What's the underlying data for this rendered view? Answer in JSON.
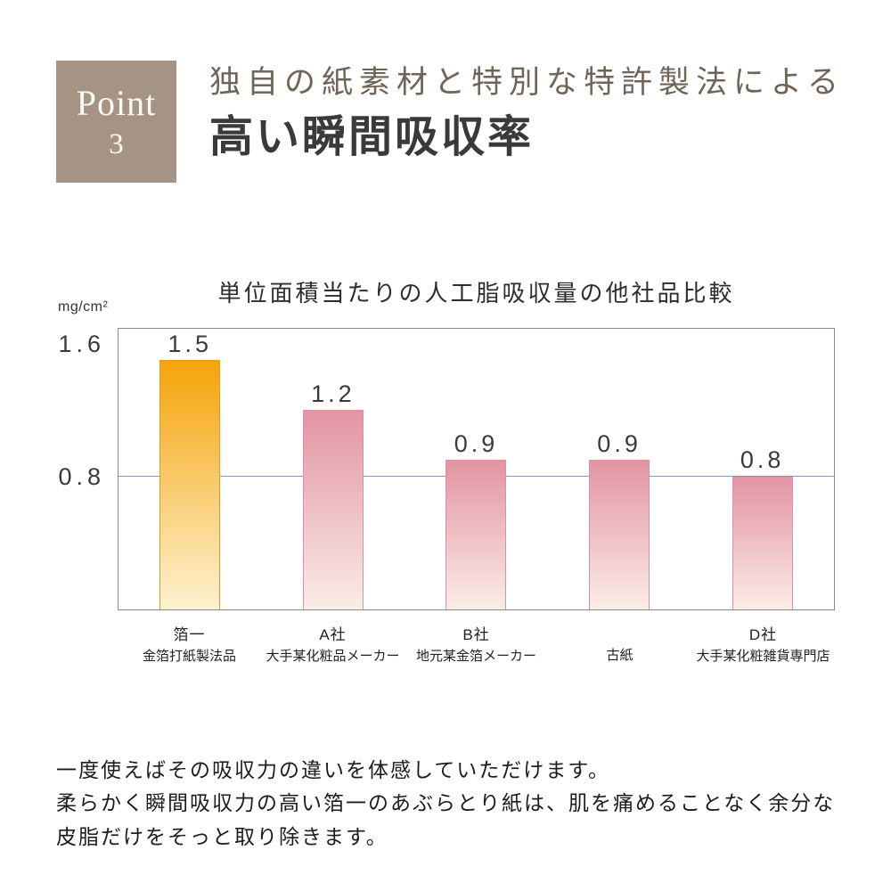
{
  "point_badge": {
    "label": "Point",
    "number": "3"
  },
  "header": {
    "subtitle": "独自の紙素材と特別な特許製法による",
    "title": "高い瞬間吸収率"
  },
  "chart_data": {
    "type": "bar",
    "title": "単位面積当たりの人工脂吸収量の他社品比較",
    "ylabel": "mg/cm²",
    "xlabel": "",
    "ylim": [
      0,
      1.7
    ],
    "yticks": [
      {
        "label": "1.6",
        "value": 1.6
      },
      {
        "label": "0.8",
        "value": 0.8
      }
    ],
    "reference_line": 0.8,
    "grid": false,
    "legend": false,
    "categories": [
      {
        "line1": "箔一",
        "line2": "金箔打紙製法品"
      },
      {
        "line1": "A社",
        "line2": "大手某化粧品メーカー"
      },
      {
        "line1": "B社",
        "line2": "地元某金箔メーカー"
      },
      {
        "line1": "",
        "line2": "古紙"
      },
      {
        "line1": "D社",
        "line2": "大手某化粧雑貨専門店"
      }
    ],
    "values": [
      1.5,
      1.2,
      0.9,
      0.9,
      0.8
    ],
    "value_labels": [
      "1.5",
      "1.2",
      "0.9",
      "0.9",
      "0.8"
    ],
    "bar_styles": [
      {
        "top": "#f6a30a",
        "bottom": "#fdf2d0",
        "border": "#e9991a"
      },
      {
        "top": "#e294a3",
        "bottom": "#fbece6",
        "border": "#da92a0"
      },
      {
        "top": "#e294a3",
        "bottom": "#fbece6",
        "border": "#da92a0"
      },
      {
        "top": "#e294a3",
        "bottom": "#fbece6",
        "border": "#da92a0"
      },
      {
        "top": "#e294a3",
        "bottom": "#fbece6",
        "border": "#da92a0"
      }
    ]
  },
  "footer": {
    "lines": [
      "一度使えばその吸収力の違いを体感していただけます。",
      "柔らかく瞬間吸収力の高い箔一のあぶらとり紙は、肌を痛めることなく余分な",
      "皮脂だけをそっと取り除きます。"
    ]
  },
  "colors": {
    "badge_bg": "#a59483",
    "accent_orange": "#f6a30a",
    "bar_pink": "#e294a3",
    "reference_line": "#9595b5",
    "plot_border": "#8a8a8a"
  }
}
